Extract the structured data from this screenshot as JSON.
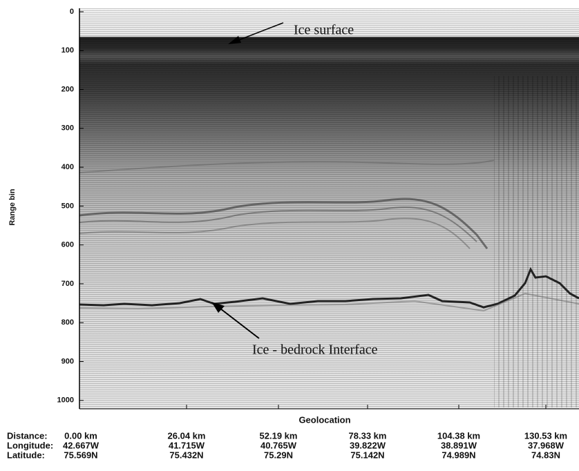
{
  "chart_data": {
    "type": "radargram",
    "ylabel": "Range bin",
    "xlabel": "Geolocation",
    "ylim": [
      0,
      1020
    ],
    "yticks": [
      0,
      100,
      200,
      300,
      400,
      500,
      600,
      700,
      800,
      900,
      1000
    ],
    "annotations": [
      {
        "text": "Ice surface"
      },
      {
        "text": "Ice - bedrock Interface"
      }
    ],
    "geolocation": {
      "row_labels": [
        "Distance:",
        "Longitude:",
        "Latitude:"
      ],
      "rows": [
        [
          "0.00 km",
          "26.04 km",
          "52.19 km",
          "78.33 km",
          "104.38 km",
          "130.53 km"
        ],
        [
          "42.667W",
          "41.715W",
          "40.765W",
          "39.822W",
          "38.891W",
          "37.968W"
        ],
        [
          "75.569N",
          "75.432N",
          "75.29N",
          "75.142N",
          "74.989N",
          "74.83N"
        ]
      ]
    }
  }
}
